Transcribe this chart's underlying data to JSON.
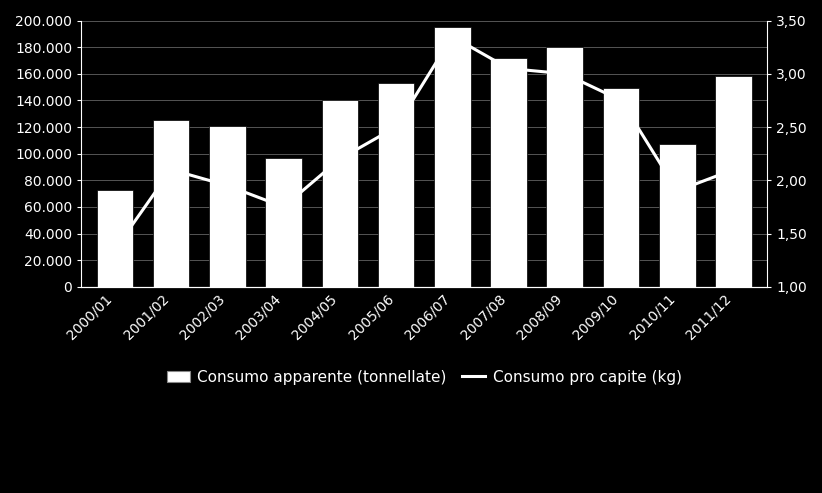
{
  "categories": [
    "2000/01",
    "2001/02",
    "2002/03",
    "2003/04",
    "2004/05",
    "2005/06",
    "2006/07",
    "2007/08",
    "2008/09",
    "2009/10",
    "2010/11",
    "2011/12"
  ],
  "consumo_apparente": [
    73000,
    125000,
    121000,
    97000,
    140000,
    153000,
    195000,
    172000,
    180000,
    149000,
    107000,
    158000
  ],
  "consumo_pro_capite": [
    1.35,
    2.1,
    1.95,
    1.75,
    2.2,
    2.5,
    3.35,
    3.05,
    3.0,
    2.75,
    1.9,
    2.1
  ],
  "left_ylim": [
    0,
    200000
  ],
  "right_ylim": [
    1.0,
    3.5
  ],
  "left_yticks": [
    0,
    20000,
    40000,
    60000,
    80000,
    100000,
    120000,
    140000,
    160000,
    180000,
    200000
  ],
  "right_yticks": [
    1.0,
    1.5,
    2.0,
    2.5,
    3.0,
    3.5
  ],
  "bar_color": "#ffffff",
  "bar_edge_color": "#000000",
  "line_color": "#ffffff",
  "background_color": "#000000",
  "plot_bg_color": "#1a1a1a",
  "grid_color": "#555555",
  "text_color": "#ffffff",
  "legend_bar_label": "Consumo apparente (tonnellate)",
  "legend_line_label": "Consumo pro capite (kg)",
  "tick_fontsize": 10,
  "legend_fontsize": 11,
  "bar_width": 0.65
}
